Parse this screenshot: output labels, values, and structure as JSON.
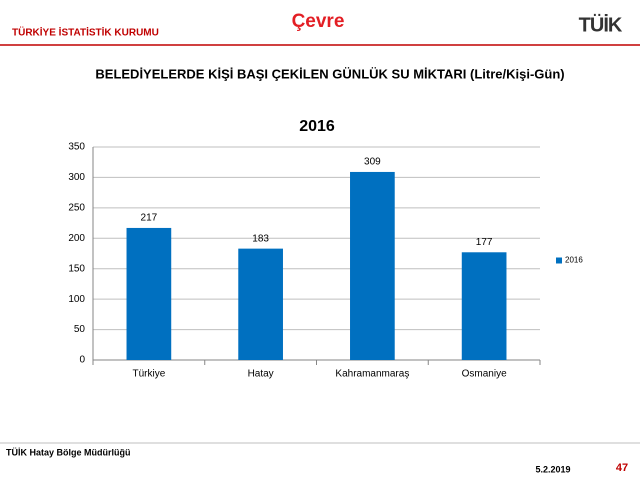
{
  "header": {
    "organization": "TÜRKİYE İSTATİSTİK KURUMU",
    "section": "Çevre",
    "logo": "TÜİK"
  },
  "slide_title": "BELEDİYELERDE KİŞİ BAŞI ÇEKİLEN GÜNLÜK SU MİKTARI (Litre/Kişi-Gün)",
  "chart_data": {
    "type": "bar",
    "title": "2016",
    "categories": [
      "Türkiye",
      "Hatay",
      "Kahramanmaraş",
      "Osmaniye"
    ],
    "series": [
      {
        "name": "2016",
        "color": "#0070c0",
        "values": [
          217,
          183,
          309,
          177
        ]
      }
    ],
    "ylim": [
      0,
      350
    ],
    "yticks": [
      0,
      50,
      100,
      150,
      200,
      250,
      300,
      350
    ],
    "grid": true,
    "legend": "right"
  },
  "footer": {
    "office": "TÜİK Hatay Bölge Müdürlüğü",
    "date": "5.2.2019",
    "page": "47"
  }
}
